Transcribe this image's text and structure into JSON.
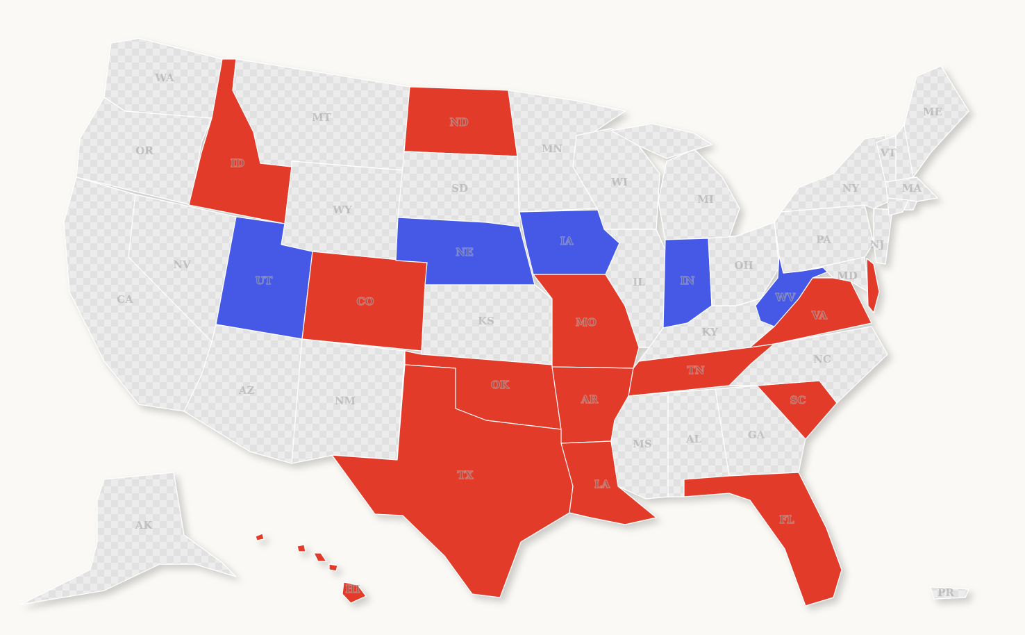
{
  "colors": {
    "background": "#faf9f5",
    "red": "#e33b2c",
    "blue": "#4459e6",
    "none_a": "#ececec",
    "none_b": "#e1e1e1"
  },
  "states": [
    {
      "code": "WA",
      "party": "none",
      "label": "WA"
    },
    {
      "code": "OR",
      "party": "none",
      "label": "OR"
    },
    {
      "code": "CA",
      "party": "none",
      "label": "CA"
    },
    {
      "code": "ID",
      "party": "red",
      "label": "ID"
    },
    {
      "code": "NV",
      "party": "none",
      "label": "NV"
    },
    {
      "code": "MT",
      "party": "none",
      "label": "MT"
    },
    {
      "code": "WY",
      "party": "none",
      "label": "WY"
    },
    {
      "code": "UT",
      "party": "blue",
      "label": "UT"
    },
    {
      "code": "AZ",
      "party": "none",
      "label": "AZ"
    },
    {
      "code": "CO",
      "party": "red",
      "label": "CO"
    },
    {
      "code": "NM",
      "party": "none",
      "label": "NM"
    },
    {
      "code": "ND",
      "party": "red",
      "label": "ND"
    },
    {
      "code": "SD",
      "party": "none",
      "label": "SD"
    },
    {
      "code": "NE",
      "party": "blue",
      "label": "NE"
    },
    {
      "code": "KS",
      "party": "none",
      "label": "KS"
    },
    {
      "code": "OK",
      "party": "red",
      "label": "OK"
    },
    {
      "code": "TX",
      "party": "red",
      "label": "TX"
    },
    {
      "code": "MN",
      "party": "none",
      "label": "MN"
    },
    {
      "code": "IA",
      "party": "blue",
      "label": "IA"
    },
    {
      "code": "MO",
      "party": "red",
      "label": "MO"
    },
    {
      "code": "AR",
      "party": "red",
      "label": "AR"
    },
    {
      "code": "LA",
      "party": "red",
      "label": "LA"
    },
    {
      "code": "WI",
      "party": "none",
      "label": "WI"
    },
    {
      "code": "IL",
      "party": "none",
      "label": "IL"
    },
    {
      "code": "MI",
      "party": "none",
      "label": "MI"
    },
    {
      "code": "IN",
      "party": "blue",
      "label": "IN"
    },
    {
      "code": "OH",
      "party": "none",
      "label": "OH"
    },
    {
      "code": "KY",
      "party": "none",
      "label": "KY"
    },
    {
      "code": "TN",
      "party": "red",
      "label": "TN"
    },
    {
      "code": "MS",
      "party": "none",
      "label": "MS"
    },
    {
      "code": "AL",
      "party": "none",
      "label": "AL"
    },
    {
      "code": "GA",
      "party": "none",
      "label": "GA"
    },
    {
      "code": "FL",
      "party": "red",
      "label": "FL"
    },
    {
      "code": "SC",
      "party": "red",
      "label": "SC"
    },
    {
      "code": "NC",
      "party": "none",
      "label": "NC"
    },
    {
      "code": "VA",
      "party": "red",
      "label": "VA"
    },
    {
      "code": "WV",
      "party": "blue",
      "label": "WV"
    },
    {
      "code": "PA",
      "party": "none",
      "label": "PA"
    },
    {
      "code": "NY",
      "party": "none",
      "label": "NY"
    },
    {
      "code": "MD",
      "party": "none",
      "label": "MD"
    },
    {
      "code": "DE",
      "party": "red",
      "label": ""
    },
    {
      "code": "NJ",
      "party": "none",
      "label": "NJ"
    },
    {
      "code": "VT",
      "party": "none",
      "label": "VT"
    },
    {
      "code": "NH",
      "party": "none",
      "label": ""
    },
    {
      "code": "ME",
      "party": "none",
      "label": "ME"
    },
    {
      "code": "MA",
      "party": "none",
      "label": "MA"
    },
    {
      "code": "CT",
      "party": "none",
      "label": ""
    },
    {
      "code": "RI",
      "party": "none",
      "label": ""
    },
    {
      "code": "AK",
      "party": "none",
      "label": "AK"
    },
    {
      "code": "HI",
      "party": "red",
      "label": "HI"
    },
    {
      "code": "PR",
      "party": "none",
      "label": "PR"
    }
  ]
}
